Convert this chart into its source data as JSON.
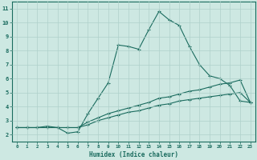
{
  "xlabel": "Humidex (Indice chaleur)",
  "ylabel": "",
  "bg_color": "#cde8e2",
  "grid_color": "#afd0ca",
  "line_color": "#1a6b5e",
  "xlim": [
    -0.5,
    23.5
  ],
  "ylim": [
    1.5,
    11.5
  ],
  "xticks": [
    0,
    1,
    2,
    3,
    4,
    5,
    6,
    7,
    8,
    9,
    10,
    11,
    12,
    13,
    14,
    15,
    16,
    17,
    18,
    19,
    20,
    21,
    22,
    23
  ],
  "yticks": [
    2,
    3,
    4,
    5,
    6,
    7,
    8,
    9,
    10,
    11
  ],
  "line1_x": [
    0,
    1,
    2,
    3,
    4,
    5,
    6,
    7,
    8,
    9,
    10,
    11,
    12,
    13,
    14,
    15,
    16,
    17,
    18,
    19,
    20,
    21,
    22,
    23
  ],
  "line1_y": [
    2.5,
    2.5,
    2.5,
    2.6,
    2.5,
    2.1,
    2.2,
    3.5,
    4.6,
    5.7,
    8.4,
    8.3,
    8.1,
    9.5,
    10.8,
    10.2,
    9.8,
    8.3,
    7.0,
    6.2,
    6.0,
    5.5,
    4.4,
    4.3
  ],
  "line2_x": [
    0,
    1,
    2,
    3,
    4,
    5,
    6,
    7,
    8,
    9,
    10,
    11,
    12,
    13,
    14,
    15,
    16,
    17,
    18,
    19,
    20,
    21,
    22,
    23
  ],
  "line2_y": [
    2.5,
    2.5,
    2.5,
    2.5,
    2.5,
    2.5,
    2.5,
    2.9,
    3.2,
    3.5,
    3.7,
    3.9,
    4.1,
    4.3,
    4.6,
    4.7,
    4.9,
    5.1,
    5.2,
    5.4,
    5.6,
    5.7,
    5.9,
    4.3
  ],
  "line3_x": [
    0,
    1,
    2,
    3,
    4,
    5,
    6,
    7,
    8,
    9,
    10,
    11,
    12,
    13,
    14,
    15,
    16,
    17,
    18,
    19,
    20,
    21,
    22,
    23
  ],
  "line3_y": [
    2.5,
    2.5,
    2.5,
    2.5,
    2.5,
    2.5,
    2.5,
    2.7,
    3.0,
    3.2,
    3.4,
    3.6,
    3.7,
    3.9,
    4.1,
    4.2,
    4.4,
    4.5,
    4.6,
    4.7,
    4.8,
    4.9,
    5.0,
    4.3
  ]
}
